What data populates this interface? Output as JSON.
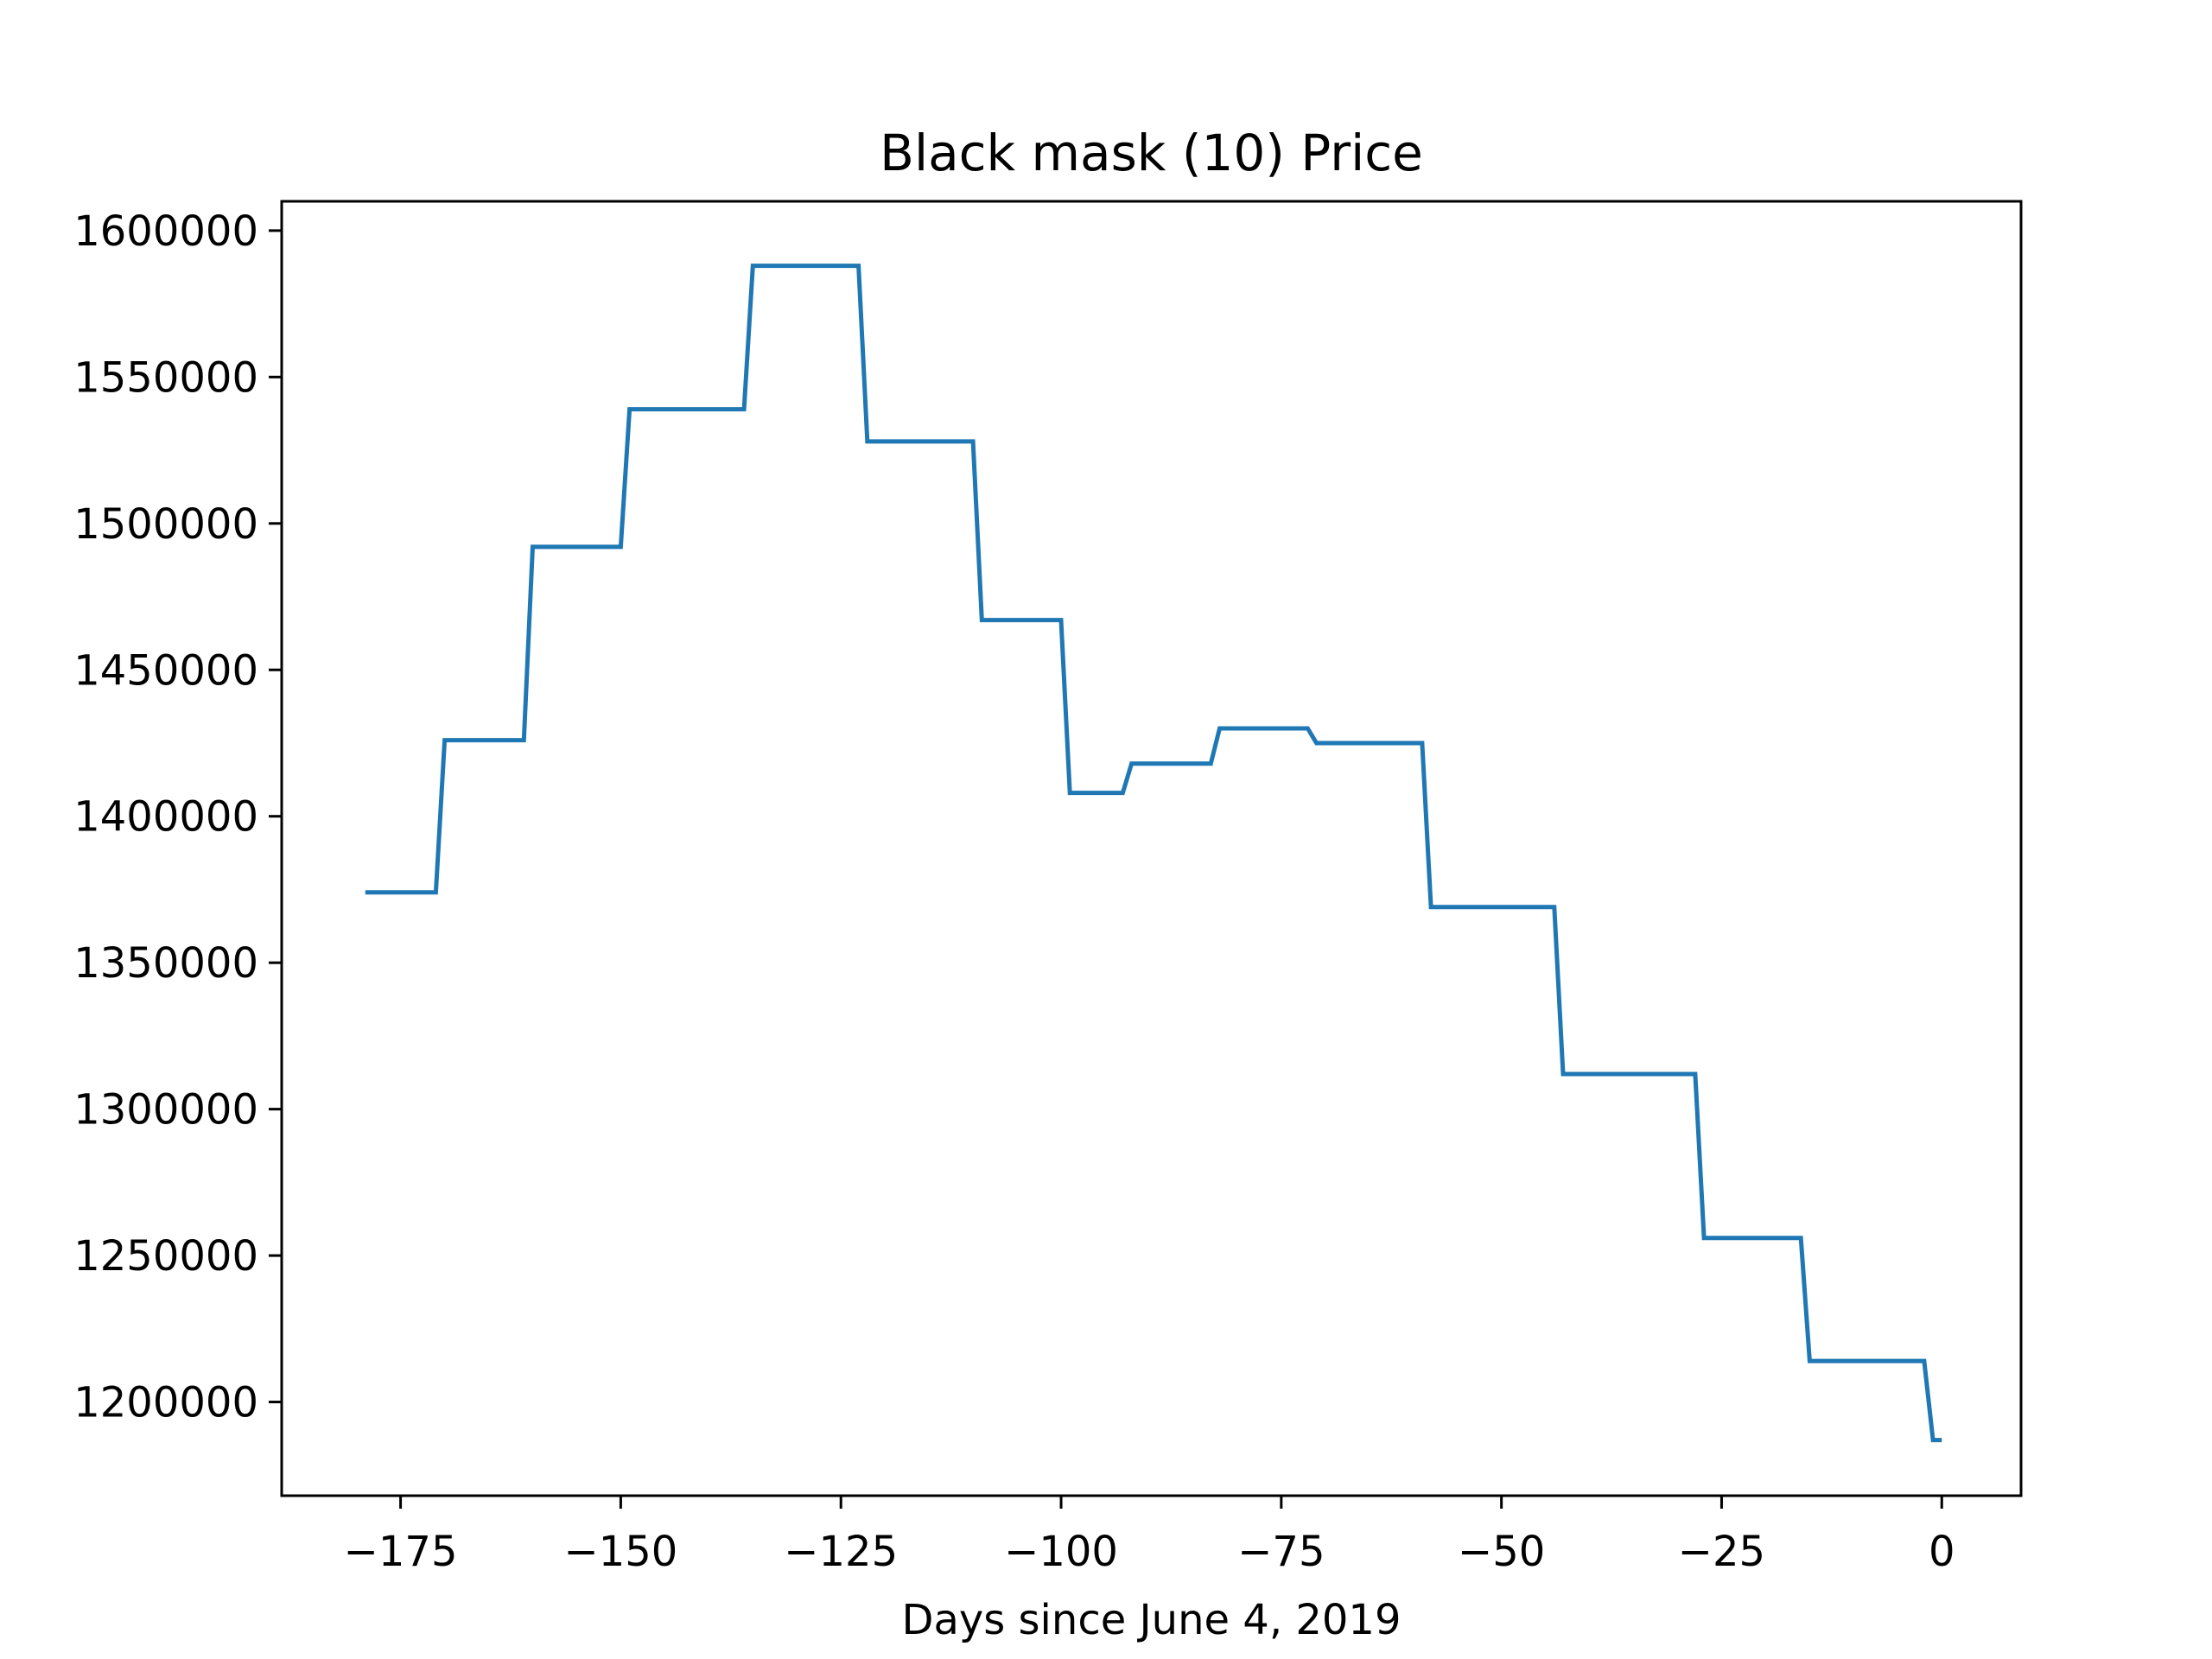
{
  "chart_data": {
    "type": "line",
    "title": "Black mask (10) Price",
    "xlabel": "Days since June 4, 2019",
    "ylabel": "",
    "xlim": [
      -188.5,
      9
    ],
    "ylim": [
      1168000,
      1610000
    ],
    "xticks": [
      -175,
      -150,
      -125,
      -100,
      -75,
      -50,
      -25,
      0
    ],
    "xtick_labels": [
      "−175",
      "−150",
      "−125",
      "−100",
      "−75",
      "−50",
      "−25",
      "0"
    ],
    "yticks": [
      1200000,
      1250000,
      1300000,
      1350000,
      1400000,
      1450000,
      1500000,
      1550000,
      1600000
    ],
    "ytick_labels": [
      "1200000",
      "1250000",
      "1300000",
      "1350000",
      "1400000",
      "1450000",
      "1500000",
      "1550000",
      "1600000"
    ],
    "grid": false,
    "series": [
      {
        "color": "#1f77b4",
        "x": [
          -179,
          -171,
          -170,
          -161,
          -160,
          -150,
          -149,
          -136,
          -135,
          -123,
          -122,
          -110,
          -109,
          -100,
          -99,
          -93,
          -92,
          -83,
          -82,
          -72,
          -71,
          -59,
          -58,
          -44,
          -43,
          -28,
          -27,
          -16,
          -15,
          -2,
          -1,
          0
        ],
        "y": [
          1374000,
          1374000,
          1426000,
          1426000,
          1492000,
          1492000,
          1539000,
          1539000,
          1588000,
          1588000,
          1528000,
          1528000,
          1467000,
          1467000,
          1408000,
          1408000,
          1418000,
          1418000,
          1430000,
          1430000,
          1425000,
          1425000,
          1369000,
          1369000,
          1312000,
          1312000,
          1256000,
          1256000,
          1214000,
          1214000,
          1187000,
          1187000
        ]
      }
    ]
  }
}
